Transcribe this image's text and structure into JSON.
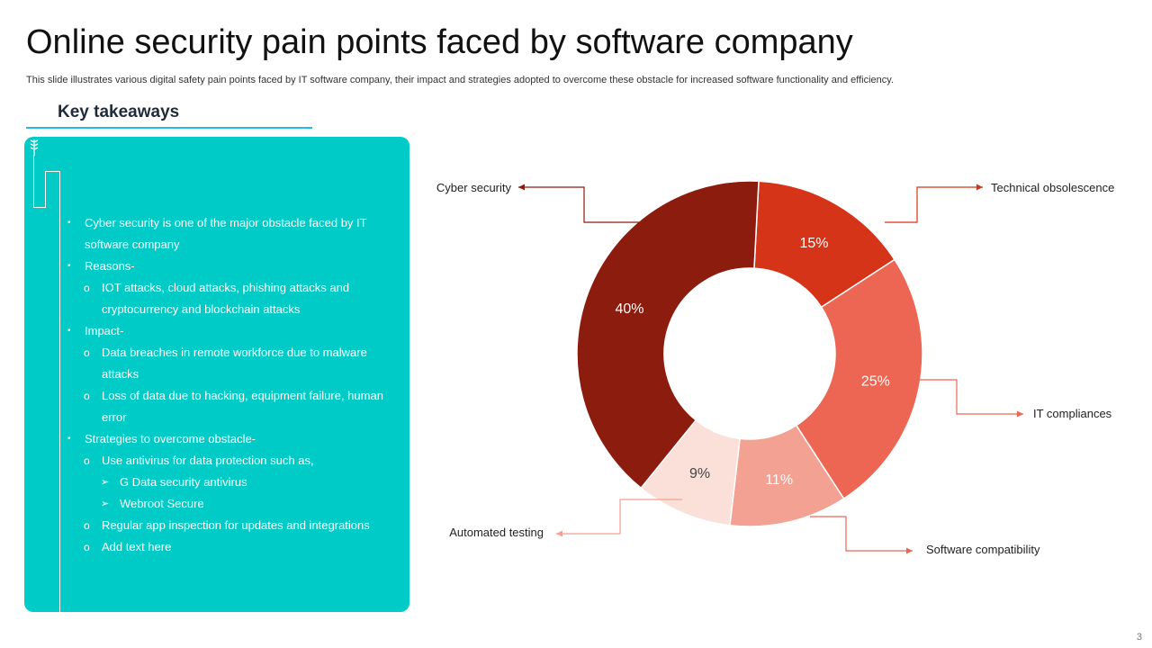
{
  "header": {
    "title": "Online security pain points faced by software company",
    "subtitle": "This slide illustrates various digital safety pain points faced by IT software company, their impact and strategies adopted to overcome these obstacle for increased software functionality and efficiency."
  },
  "takeaways": {
    "heading": "Key takeaways",
    "items": [
      {
        "level": 1,
        "text": "Cyber security is one of the major obstacle faced by IT"
      },
      {
        "level": 1,
        "text": "software company",
        "cont": true
      },
      {
        "level": 1,
        "text": "Reasons-"
      },
      {
        "level": 2,
        "text": "IOT attacks, cloud attacks, phishing attacks and"
      },
      {
        "level": 2,
        "text": "cryptocurrency and blockchain attacks",
        "cont": true
      },
      {
        "level": 1,
        "text": "Impact-"
      },
      {
        "level": 2,
        "text": "Data breaches in remote workforce due to malware"
      },
      {
        "level": 2,
        "text": "attacks",
        "cont": true
      },
      {
        "level": 2,
        "text": "Loss of data due to hacking, equipment failure, human"
      },
      {
        "level": 2,
        "text": "error",
        "cont": true
      },
      {
        "level": 1,
        "text": "Strategies to overcome obstacle-"
      },
      {
        "level": 2,
        "text": "Use antivirus for data protection such as,"
      },
      {
        "level": 3,
        "text": "G Data security antivirus"
      },
      {
        "level": 3,
        "text": "Webroot Secure"
      },
      {
        "level": 2,
        "text": "Regular  app inspection for updates and integrations"
      },
      {
        "level": 2,
        "text": "Add text here"
      }
    ],
    "markers": {
      "1": "•",
      "2": "o",
      "3": "➢"
    }
  },
  "chart_data": {
    "type": "pie",
    "donut": true,
    "slices": [
      {
        "label": "Technical obsolescence",
        "value": 15,
        "display": "15%",
        "color": "#d63418"
      },
      {
        "label": "IT compliances",
        "value": 25,
        "display": "25%",
        "color": "#ec6653"
      },
      {
        "label": "Software compatibility",
        "value": 11,
        "display": "11%",
        "color": "#f2a192"
      },
      {
        "label": "Automated testing",
        "value": 9,
        "display": "9%",
        "color": "#fbdfd9"
      },
      {
        "label": "Cyber security",
        "value": 40,
        "display": "40%",
        "color": "#8c1c0e"
      }
    ]
  },
  "page_number": "3"
}
